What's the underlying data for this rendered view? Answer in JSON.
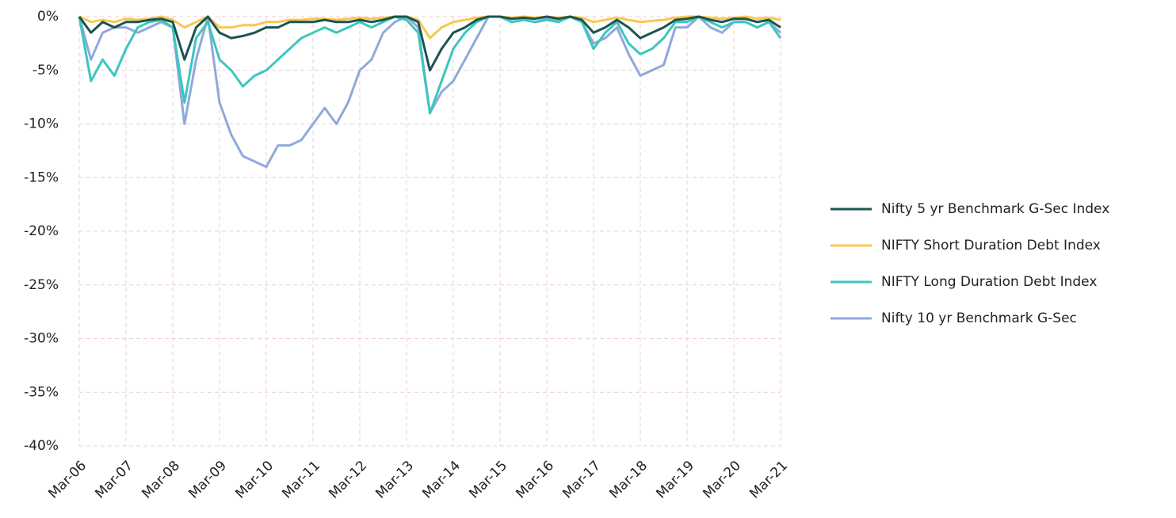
{
  "chart_data": {
    "type": "line",
    "categories": [
      "Mar-06",
      null,
      null,
      null,
      "Mar-07",
      null,
      null,
      null,
      "Mar-08",
      null,
      null,
      null,
      "Mar-09",
      null,
      null,
      null,
      "Mar-10",
      null,
      null,
      null,
      "Mar-11",
      null,
      null,
      null,
      "Mar-12",
      null,
      null,
      null,
      "Mar-13",
      null,
      null,
      null,
      "Mar-14",
      null,
      null,
      null,
      "Mar-15",
      null,
      null,
      null,
      "Mar-16",
      null,
      null,
      null,
      "Mar-17",
      null,
      null,
      null,
      "Mar-18",
      null,
      null,
      null,
      "Mar-19",
      null,
      null,
      null,
      "Mar-20",
      null,
      null,
      null,
      "Mar-21"
    ],
    "series": [
      {
        "name": "Nifty 5 yr Benchmark G-Sec Index",
        "color": "#1b5450",
        "values": [
          0,
          -1.5,
          -0.5,
          -1,
          -0.5,
          -0.5,
          -0.3,
          -0.2,
          -0.5,
          -4,
          -1,
          0,
          -1.5,
          -2,
          -1.8,
          -1.5,
          -1,
          -1,
          -0.5,
          -0.5,
          -0.5,
          -0.3,
          -0.5,
          -0.5,
          -0.3,
          -0.5,
          -0.3,
          0,
          0,
          -0.5,
          -5,
          -3,
          -1.5,
          -1,
          -0.3,
          0,
          0,
          -0.2,
          -0.1,
          -0.2,
          0,
          -0.2,
          0,
          -0.3,
          -1.5,
          -1,
          -0.3,
          -1,
          -2,
          -1.5,
          -1,
          -0.3,
          -0.2,
          0,
          -0.3,
          -0.5,
          -0.2,
          -0.2,
          -0.5,
          -0.3,
          -1
        ]
      },
      {
        "name": "NIFTY Short Duration Debt Index",
        "color": "#f9c74f",
        "values": [
          0,
          -0.5,
          -0.3,
          -0.5,
          -0.2,
          -0.3,
          -0.2,
          0,
          -0.3,
          -1,
          -0.5,
          0,
          -1,
          -1,
          -0.8,
          -0.8,
          -0.5,
          -0.5,
          -0.3,
          -0.3,
          -0.2,
          -0.2,
          -0.3,
          -0.2,
          -0.1,
          -0.2,
          -0.1,
          0,
          0,
          -0.3,
          -2,
          -1,
          -0.5,
          -0.3,
          -0.1,
          0,
          0,
          -0.1,
          0,
          -0.1,
          0,
          -0.1,
          0,
          -0.1,
          -0.5,
          -0.3,
          -0.1,
          -0.3,
          -0.5,
          -0.4,
          -0.3,
          -0.1,
          0,
          0,
          -0.1,
          -0.2,
          -0.1,
          0,
          -0.2,
          -0.1,
          -0.3
        ]
      },
      {
        "name": "NIFTY Long Duration Debt Index",
        "color": "#3cc6c0",
        "values": [
          0,
          -6,
          -4,
          -5.5,
          -3,
          -1,
          -0.5,
          -0.3,
          -1,
          -8,
          -2,
          -0.5,
          -4,
          -5,
          -6.5,
          -5.5,
          -5,
          -4,
          -3,
          -2,
          -1.5,
          -1,
          -1.5,
          -1,
          -0.5,
          -1,
          -0.5,
          0,
          -0.3,
          -1.5,
          -9,
          -6,
          -3,
          -1.5,
          -0.5,
          0,
          0,
          -0.5,
          -0.3,
          -0.5,
          -0.3,
          -0.5,
          0,
          -0.5,
          -3,
          -1.5,
          -0.5,
          -2.5,
          -3.5,
          -3,
          -2,
          -0.5,
          -0.5,
          0,
          -0.5,
          -1,
          -0.5,
          -0.5,
          -1,
          -0.5,
          -2
        ]
      },
      {
        "name": "Nifty 10 yr Benchmark G-Sec",
        "color": "#8fa9dc",
        "values": [
          0,
          -4,
          -1.5,
          -1,
          -1,
          -1.5,
          -1,
          -0.5,
          -1,
          -10,
          -4,
          0,
          -8,
          -11,
          -13,
          -13.5,
          -14,
          -12,
          -12,
          -11.5,
          -10,
          -8.5,
          -10,
          -8,
          -5,
          -4,
          -1.5,
          -0.5,
          0,
          -1,
          -9,
          -7,
          -6,
          -4,
          -2,
          0,
          0,
          -0.5,
          -0.3,
          -0.5,
          -0.2,
          -0.3,
          0,
          -0.5,
          -2.5,
          -2,
          -1,
          -3.5,
          -5.5,
          -5,
          -4.5,
          -1,
          -1,
          0,
          -1,
          -1.5,
          -0.5,
          -0.5,
          -1,
          -0.5,
          -1.5
        ]
      }
    ],
    "ylim": [
      -40,
      0
    ],
    "yticks": [
      {
        "value": 0,
        "label": "0%"
      },
      {
        "value": -5,
        "label": "-5%"
      },
      {
        "value": -10,
        "label": "-10%"
      },
      {
        "value": -15,
        "label": "-15%"
      },
      {
        "value": -20,
        "label": "-20%"
      },
      {
        "value": -25,
        "label": "-25%"
      },
      {
        "value": -30,
        "label": "-30%"
      },
      {
        "value": -35,
        "label": "-35%"
      },
      {
        "value": -40,
        "label": "-40%"
      }
    ],
    "grid": true
  }
}
